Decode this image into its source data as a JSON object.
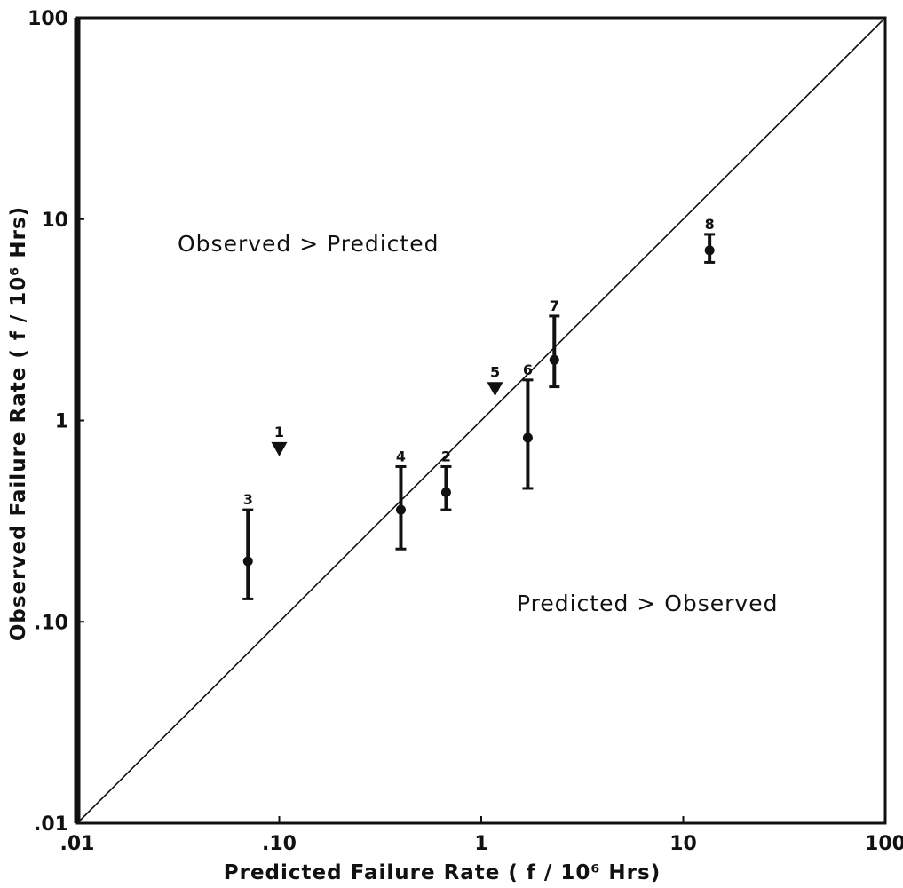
{
  "chart_data": {
    "type": "scatter",
    "x_scale": "log",
    "y_scale": "log",
    "xlim": [
      0.01,
      100
    ],
    "ylim": [
      0.01,
      100
    ],
    "xlabel": "Predicted Failure Rate ( f / 10⁶ Hrs)",
    "ylabel": "Observed Failure Rate ( f / 10⁶ Hrs)",
    "x_ticks": [
      {
        "value": 0.01,
        "label": ".01"
      },
      {
        "value": 0.1,
        "label": ".10"
      },
      {
        "value": 1,
        "label": "1"
      },
      {
        "value": 10,
        "label": "10"
      },
      {
        "value": 100,
        "label": "100"
      }
    ],
    "y_ticks": [
      {
        "value": 0.01,
        "label": ".01"
      },
      {
        "value": 0.1,
        "label": ".10"
      },
      {
        "value": 1,
        "label": "1"
      },
      {
        "value": 10,
        "label": "10"
      },
      {
        "value": 100,
        "label": "100"
      }
    ],
    "grid": false,
    "reference_line": {
      "from": [
        0.01,
        0.01
      ],
      "to": [
        100,
        100
      ]
    },
    "regions": {
      "upper": "Observed > Predicted",
      "lower": "Predicted > Observed"
    },
    "points": [
      {
        "label": "1",
        "x": 0.1,
        "y": 0.72,
        "marker": "triangle-down"
      },
      {
        "label": "2",
        "x": 0.67,
        "y": 0.44,
        "low": 0.36,
        "high": 0.59,
        "marker": "dot"
      },
      {
        "label": "3",
        "x": 0.07,
        "y": 0.2,
        "low": 0.13,
        "high": 0.36,
        "marker": "dot"
      },
      {
        "label": "4",
        "x": 0.4,
        "y": 0.36,
        "low": 0.23,
        "high": 0.59,
        "marker": "dot"
      },
      {
        "label": "5",
        "x": 1.17,
        "y": 1.43,
        "marker": "triangle-down"
      },
      {
        "label": "6",
        "x": 1.7,
        "y": 0.82,
        "low": 0.46,
        "high": 1.59,
        "marker": "dot"
      },
      {
        "label": "7",
        "x": 2.3,
        "y": 2.0,
        "low": 1.47,
        "high": 3.3,
        "marker": "dot"
      },
      {
        "label": "8",
        "x": 13.5,
        "y": 7.0,
        "low": 6.1,
        "high": 8.4,
        "marker": "dot"
      }
    ]
  }
}
